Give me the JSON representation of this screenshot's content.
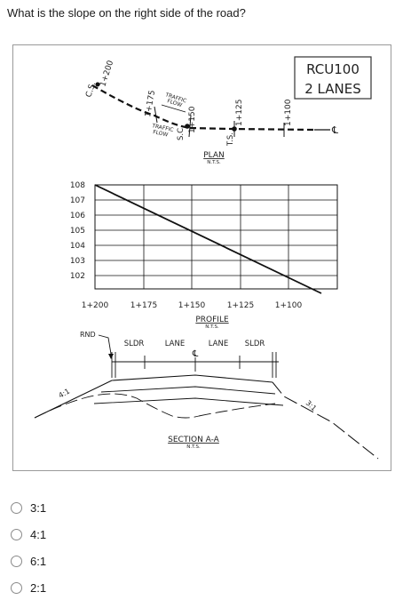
{
  "question": "What is the slope on the right side of the road?",
  "figure": {
    "badge": {
      "line1": "RCU100",
      "line2": "2 LANES"
    },
    "plan": {
      "title": "PLAN",
      "scale": "N.T.S.",
      "stations": [
        "1+200",
        "1+175",
        "1+150",
        "1+125",
        "1+100"
      ],
      "cs_label": "C.S.",
      "sc_label": "S.C.",
      "ts_label": "T.S.",
      "traffic_top": [
        "TRAFFIC",
        "FLOW"
      ],
      "traffic_bottom": [
        "TRAFFIC",
        "FLOW"
      ],
      "cl_symbol": "℄"
    },
    "profile": {
      "title": "PROFILE",
      "scale": "N.T.S.",
      "y_labels": [
        "108",
        "107",
        "106",
        "105",
        "104",
        "103",
        "102"
      ],
      "x_labels": [
        "1+200",
        "1+175",
        "1+150",
        "1+125",
        "1+100"
      ]
    },
    "section": {
      "title": "SECTION  A-A",
      "scale": "N.T.S.",
      "rnd": "RND",
      "labels": [
        "SLDR",
        "LANE",
        "LANE",
        "SLDR"
      ],
      "cl_symbol": "℄",
      "left_slope": "4:1",
      "right_slope": "3:1"
    }
  },
  "options": [
    {
      "label": "3:1",
      "selected": false
    },
    {
      "label": "4:1",
      "selected": false
    },
    {
      "label": "6:1",
      "selected": false
    },
    {
      "label": "2:1",
      "selected": false
    }
  ]
}
